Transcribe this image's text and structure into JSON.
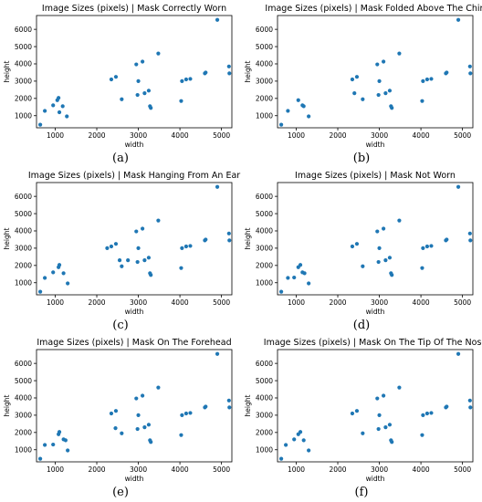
{
  "chart_data": [
    {
      "type": "scatter",
      "title": "Image Sizes (pixels) | Mask Correctly Worn",
      "xlabel": "width",
      "ylabel": "height",
      "xlim": [
        550,
        5250
      ],
      "ylim": [
        300,
        6800
      ],
      "xticks": [
        1000,
        2000,
        3000,
        4000,
        5000
      ],
      "yticks": [
        1000,
        2000,
        3000,
        4000,
        5000,
        6000
      ],
      "caption": "(a)",
      "color": "#1f77b4",
      "points": [
        [
          640,
          480
        ],
        [
          750,
          1280
        ],
        [
          950,
          1600
        ],
        [
          1050,
          1900
        ],
        [
          1080,
          2030
        ],
        [
          1100,
          1200
        ],
        [
          1180,
          1550
        ],
        [
          1280,
          960
        ],
        [
          2350,
          3100
        ],
        [
          2460,
          3250
        ],
        [
          2600,
          1950
        ],
        [
          2950,
          3970
        ],
        [
          2980,
          2200
        ],
        [
          3000,
          3000
        ],
        [
          3100,
          4130
        ],
        [
          3150,
          2300
        ],
        [
          3250,
          2450
        ],
        [
          3280,
          1550
        ],
        [
          3300,
          1450
        ],
        [
          3480,
          4600
        ],
        [
          4030,
          1850
        ],
        [
          4050,
          3000
        ],
        [
          4150,
          3100
        ],
        [
          4250,
          3130
        ],
        [
          4600,
          3450
        ],
        [
          4620,
          3500
        ],
        [
          4900,
          6550
        ],
        [
          5180,
          3850
        ],
        [
          5190,
          3450
        ]
      ]
    },
    {
      "type": "scatter",
      "title": "Image Sizes (pixels) | Mask Folded Above The Chin",
      "xlabel": "width",
      "ylabel": "height",
      "xlim": [
        550,
        5250
      ],
      "ylim": [
        300,
        6800
      ],
      "xticks": [
        1000,
        2000,
        3000,
        4000,
        5000
      ],
      "yticks": [
        1000,
        2000,
        3000,
        4000,
        5000,
        6000
      ],
      "caption": "(b)",
      "color": "#1f77b4",
      "points": [
        [
          640,
          480
        ],
        [
          800,
          1280
        ],
        [
          1050,
          1900
        ],
        [
          1150,
          1600
        ],
        [
          1180,
          1550
        ],
        [
          1300,
          960
        ],
        [
          2350,
          3100
        ],
        [
          2400,
          2300
        ],
        [
          2460,
          3250
        ],
        [
          2600,
          1950
        ],
        [
          2950,
          3970
        ],
        [
          2980,
          2200
        ],
        [
          3000,
          3000
        ],
        [
          3100,
          4130
        ],
        [
          3150,
          2300
        ],
        [
          3250,
          2450
        ],
        [
          3280,
          1550
        ],
        [
          3300,
          1450
        ],
        [
          3480,
          4600
        ],
        [
          4030,
          1850
        ],
        [
          4050,
          3000
        ],
        [
          4150,
          3100
        ],
        [
          4250,
          3130
        ],
        [
          4600,
          3450
        ],
        [
          4620,
          3500
        ],
        [
          4900,
          6550
        ],
        [
          5180,
          3850
        ],
        [
          5190,
          3450
        ]
      ]
    },
    {
      "type": "scatter",
      "title": "Image Sizes (pixels) | Mask Hanging From An Ear",
      "xlabel": "width",
      "ylabel": "height",
      "xlim": [
        550,
        5250
      ],
      "ylim": [
        300,
        6800
      ],
      "xticks": [
        1000,
        2000,
        3000,
        4000,
        5000
      ],
      "yticks": [
        1000,
        2000,
        3000,
        4000,
        5000,
        6000
      ],
      "caption": "(c)",
      "color": "#1f77b4",
      "points": [
        [
          640,
          480
        ],
        [
          750,
          1280
        ],
        [
          950,
          1600
        ],
        [
          1080,
          1900
        ],
        [
          1100,
          2030
        ],
        [
          1200,
          1550
        ],
        [
          1300,
          960
        ],
        [
          2250,
          3000
        ],
        [
          2350,
          3100
        ],
        [
          2460,
          3250
        ],
        [
          2550,
          2300
        ],
        [
          2600,
          1950
        ],
        [
          2750,
          2300
        ],
        [
          2950,
          3970
        ],
        [
          2980,
          2200
        ],
        [
          3000,
          3000
        ],
        [
          3100,
          4130
        ],
        [
          3150,
          2300
        ],
        [
          3250,
          2450
        ],
        [
          3280,
          1550
        ],
        [
          3300,
          1450
        ],
        [
          3480,
          4600
        ],
        [
          4030,
          1850
        ],
        [
          4050,
          3000
        ],
        [
          4150,
          3100
        ],
        [
          4250,
          3130
        ],
        [
          4600,
          3450
        ],
        [
          4620,
          3500
        ],
        [
          4900,
          6550
        ],
        [
          5180,
          3850
        ],
        [
          5190,
          3450
        ]
      ]
    },
    {
      "type": "scatter",
      "title": "Image Sizes (pixels) | Mask Not Worn",
      "xlabel": "width",
      "ylabel": "height",
      "xlim": [
        550,
        5250
      ],
      "ylim": [
        300,
        6800
      ],
      "xticks": [
        1000,
        2000,
        3000,
        4000,
        5000
      ],
      "yticks": [
        1000,
        2000,
        3000,
        4000,
        5000,
        6000
      ],
      "caption": "(d)",
      "color": "#1f77b4",
      "points": [
        [
          640,
          480
        ],
        [
          800,
          1280
        ],
        [
          950,
          1300
        ],
        [
          1050,
          1900
        ],
        [
          1100,
          2030
        ],
        [
          1150,
          1600
        ],
        [
          1200,
          1550
        ],
        [
          1300,
          960
        ],
        [
          2350,
          3100
        ],
        [
          2460,
          3250
        ],
        [
          2600,
          1950
        ],
        [
          2950,
          3970
        ],
        [
          2980,
          2200
        ],
        [
          3000,
          3000
        ],
        [
          3100,
          4130
        ],
        [
          3150,
          2300
        ],
        [
          3250,
          2450
        ],
        [
          3280,
          1550
        ],
        [
          3300,
          1450
        ],
        [
          3480,
          4600
        ],
        [
          4030,
          1850
        ],
        [
          4050,
          3000
        ],
        [
          4150,
          3100
        ],
        [
          4250,
          3130
        ],
        [
          4600,
          3450
        ],
        [
          4620,
          3500
        ],
        [
          4900,
          6550
        ],
        [
          5180,
          3850
        ],
        [
          5190,
          3450
        ]
      ]
    },
    {
      "type": "scatter",
      "title": "Image Sizes (pixels) | Mask On The Forehead",
      "xlabel": "width",
      "ylabel": "height",
      "xlim": [
        550,
        5250
      ],
      "ylim": [
        300,
        6800
      ],
      "xticks": [
        1000,
        2000,
        3000,
        4000,
        5000
      ],
      "yticks": [
        1000,
        2000,
        3000,
        4000,
        5000,
        6000
      ],
      "caption": "(e)",
      "color": "#1f77b4",
      "points": [
        [
          640,
          480
        ],
        [
          750,
          1280
        ],
        [
          950,
          1300
        ],
        [
          1080,
          1900
        ],
        [
          1100,
          2030
        ],
        [
          1200,
          1600
        ],
        [
          1250,
          1550
        ],
        [
          1300,
          960
        ],
        [
          2350,
          3100
        ],
        [
          2460,
          3250
        ],
        [
          2450,
          2250
        ],
        [
          2600,
          1950
        ],
        [
          2950,
          3970
        ],
        [
          2980,
          2200
        ],
        [
          3000,
          3000
        ],
        [
          3100,
          4130
        ],
        [
          3150,
          2300
        ],
        [
          3250,
          2450
        ],
        [
          3280,
          1550
        ],
        [
          3300,
          1450
        ],
        [
          3480,
          4600
        ],
        [
          4030,
          1850
        ],
        [
          4050,
          3000
        ],
        [
          4150,
          3100
        ],
        [
          4250,
          3130
        ],
        [
          4600,
          3450
        ],
        [
          4620,
          3500
        ],
        [
          4900,
          6550
        ],
        [
          5180,
          3850
        ],
        [
          5190,
          3450
        ]
      ]
    },
    {
      "type": "scatter",
      "title": "Image Sizes (pixels) | Mask On The Tip Of The Nose",
      "xlabel": "width",
      "ylabel": "height",
      "xlim": [
        550,
        5250
      ],
      "ylim": [
        300,
        6800
      ],
      "xticks": [
        1000,
        2000,
        3000,
        4000,
        5000
      ],
      "yticks": [
        1000,
        2000,
        3000,
        4000,
        5000,
        6000
      ],
      "caption": "(f)",
      "color": "#1f77b4",
      "points": [
        [
          640,
          480
        ],
        [
          750,
          1280
        ],
        [
          950,
          1600
        ],
        [
          1050,
          1900
        ],
        [
          1100,
          2030
        ],
        [
          1180,
          1550
        ],
        [
          1300,
          960
        ],
        [
          2350,
          3100
        ],
        [
          2460,
          3250
        ],
        [
          2600,
          1950
        ],
        [
          2950,
          3970
        ],
        [
          2980,
          2200
        ],
        [
          3000,
          3000
        ],
        [
          3100,
          4130
        ],
        [
          3150,
          2300
        ],
        [
          3250,
          2450
        ],
        [
          3280,
          1550
        ],
        [
          3300,
          1450
        ],
        [
          3480,
          4600
        ],
        [
          4030,
          1850
        ],
        [
          4050,
          3000
        ],
        [
          4150,
          3100
        ],
        [
          4250,
          3130
        ],
        [
          4600,
          3450
        ],
        [
          4620,
          3500
        ],
        [
          4900,
          6550
        ],
        [
          5180,
          3850
        ],
        [
          5190,
          3450
        ]
      ]
    }
  ]
}
